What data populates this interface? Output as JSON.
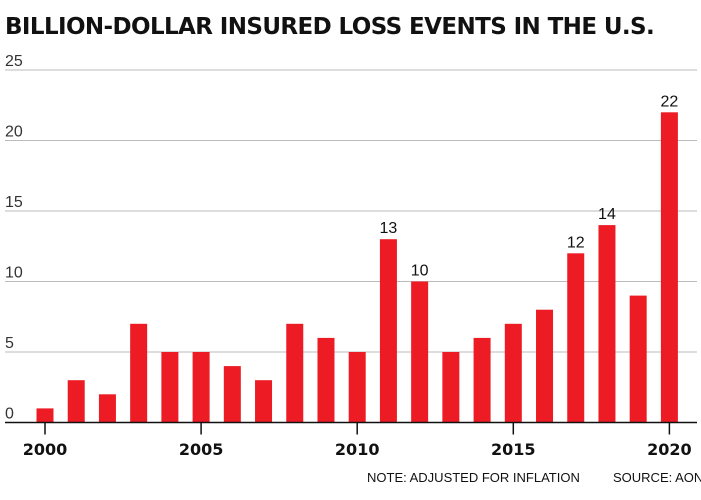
{
  "chart_data": {
    "type": "bar",
    "title": "BILLION-DOLLAR INSURED LOSS EVENTS IN THE U.S.",
    "categories": [
      2000,
      2001,
      2002,
      2003,
      2004,
      2005,
      2006,
      2007,
      2008,
      2009,
      2010,
      2011,
      2012,
      2013,
      2014,
      2015,
      2016,
      2017,
      2018,
      2019,
      2020
    ],
    "values": [
      1,
      3,
      2,
      7,
      5,
      5,
      4,
      3,
      7,
      6,
      5,
      13,
      10,
      5,
      6,
      7,
      8,
      12,
      14,
      9,
      22
    ],
    "labeled_values": {
      "2011": "13",
      "2012": "10",
      "2017": "12",
      "2018": "14",
      "2020": "22"
    },
    "xticks": [
      2000,
      2005,
      2010,
      2015,
      2020
    ],
    "yticks": [
      0,
      5,
      10,
      15,
      20,
      25
    ],
    "ylim": [
      0,
      25
    ],
    "grid": true,
    "bar_color": "#ed1c24",
    "xlabel": "",
    "ylabel": ""
  },
  "notes": {
    "note": "NOTE: ADJUSTED FOR INFLATION",
    "source": "SOURCE: AON"
  }
}
